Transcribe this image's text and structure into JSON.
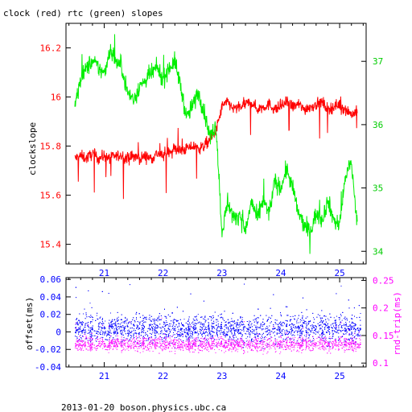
{
  "page": {
    "title": "clock (red) rtc (green) slopes",
    "footer": "2013-01-20  boson.physics.ubc.ca"
  },
  "colors": {
    "clock": "#ff0000",
    "rtc": "#00ee00",
    "offset": "#0000ff",
    "rndtrip": "#ff00ff",
    "frame": "#000000"
  },
  "chart_data": [
    {
      "type": "line",
      "title": "clock (red) rtc (green) slopes",
      "xlabel": "",
      "ylabel": "clockslope",
      "y2label": "",
      "xlim": [
        20.35,
        25.45
      ],
      "ylim": [
        15.32,
        16.3
      ],
      "y2lim": [
        33.8,
        37.6
      ],
      "xticks": [
        21,
        22,
        23,
        24,
        25
      ],
      "yticks": [
        15.4,
        15.6,
        15.8,
        16,
        16.2
      ],
      "y2ticks": [
        34,
        35,
        36,
        37
      ],
      "grid": false,
      "series": [
        {
          "axis": "left",
          "color": "#ff0000",
          "x": [
            20.5,
            20.6,
            20.7,
            20.8,
            20.9,
            21.0,
            21.1,
            21.2,
            21.3,
            21.4,
            21.5,
            21.6,
            21.7,
            21.8,
            21.9,
            22.0,
            22.1,
            22.2,
            22.3,
            22.4,
            22.5,
            22.6,
            22.7,
            22.8,
            22.9,
            23.0,
            23.1,
            23.2,
            23.3,
            23.4,
            23.5,
            23.6,
            23.7,
            23.8,
            23.9,
            24.0,
            24.1,
            24.2,
            24.3,
            24.4,
            24.5,
            24.6,
            24.7,
            24.8,
            24.9,
            25.0,
            25.1,
            25.2,
            25.3
          ],
          "y": [
            15.75,
            15.76,
            15.75,
            15.77,
            15.75,
            15.76,
            15.75,
            15.76,
            15.76,
            15.75,
            15.76,
            15.75,
            15.76,
            15.75,
            15.77,
            15.76,
            15.78,
            15.79,
            15.78,
            15.79,
            15.8,
            15.79,
            15.8,
            15.83,
            15.86,
            15.96,
            15.98,
            15.95,
            15.96,
            15.97,
            15.98,
            15.95,
            15.96,
            15.97,
            15.95,
            15.96,
            15.98,
            15.96,
            15.97,
            15.95,
            15.96,
            15.97,
            15.98,
            15.95,
            15.96,
            15.97,
            15.95,
            15.93,
            15.94
          ]
        },
        {
          "axis": "right",
          "color": "#00ee00",
          "x": [
            20.5,
            20.6,
            20.7,
            20.8,
            20.9,
            21.0,
            21.1,
            21.2,
            21.3,
            21.4,
            21.5,
            21.6,
            21.7,
            21.8,
            21.9,
            22.0,
            22.1,
            22.2,
            22.3,
            22.4,
            22.5,
            22.6,
            22.7,
            22.8,
            22.9,
            23.0,
            23.1,
            23.2,
            23.3,
            23.4,
            23.5,
            23.6,
            23.7,
            23.8,
            23.9,
            24.0,
            24.1,
            24.2,
            24.3,
            24.4,
            24.5,
            24.6,
            24.7,
            24.8,
            24.9,
            25.0,
            25.1,
            25.2,
            25.3
          ],
          "y": [
            36.3,
            36.7,
            36.9,
            37.0,
            36.9,
            36.8,
            37.2,
            37.0,
            36.9,
            36.5,
            36.4,
            36.6,
            36.7,
            36.8,
            36.9,
            36.7,
            36.9,
            37.0,
            36.6,
            36.1,
            36.3,
            36.5,
            36.2,
            35.8,
            36.0,
            34.3,
            34.8,
            34.5,
            34.6,
            34.3,
            34.8,
            34.5,
            34.8,
            34.6,
            35.1,
            35.0,
            35.3,
            35.0,
            34.6,
            34.4,
            34.3,
            34.6,
            34.5,
            34.8,
            34.5,
            34.4,
            35.2,
            35.4,
            34.4
          ]
        }
      ]
    },
    {
      "type": "scatter",
      "xlabel": "",
      "ylabel": "offset(ms)",
      "y2label": "rnd-trip(ms)",
      "xlim": [
        20.35,
        25.45
      ],
      "ylim": [
        -0.04,
        0.062
      ],
      "y2lim": [
        0.093,
        0.255
      ],
      "xticks": [
        21,
        22,
        23,
        24,
        25
      ],
      "yticks": [
        -0.04,
        -0.02,
        0,
        0.02,
        0.04,
        0.06
      ],
      "y2ticks": [
        0.1,
        0.15,
        0.2,
        0.25
      ],
      "grid": false,
      "series": [
        {
          "axis": "left",
          "color": "#0000ff",
          "x_range": [
            20.5,
            25.35
          ],
          "center": 0.004,
          "spread": 0.015
        },
        {
          "axis": "right",
          "color": "#ff00ff",
          "x_range": [
            20.5,
            25.35
          ],
          "center": 0.135,
          "spread": 0.012
        }
      ]
    }
  ]
}
